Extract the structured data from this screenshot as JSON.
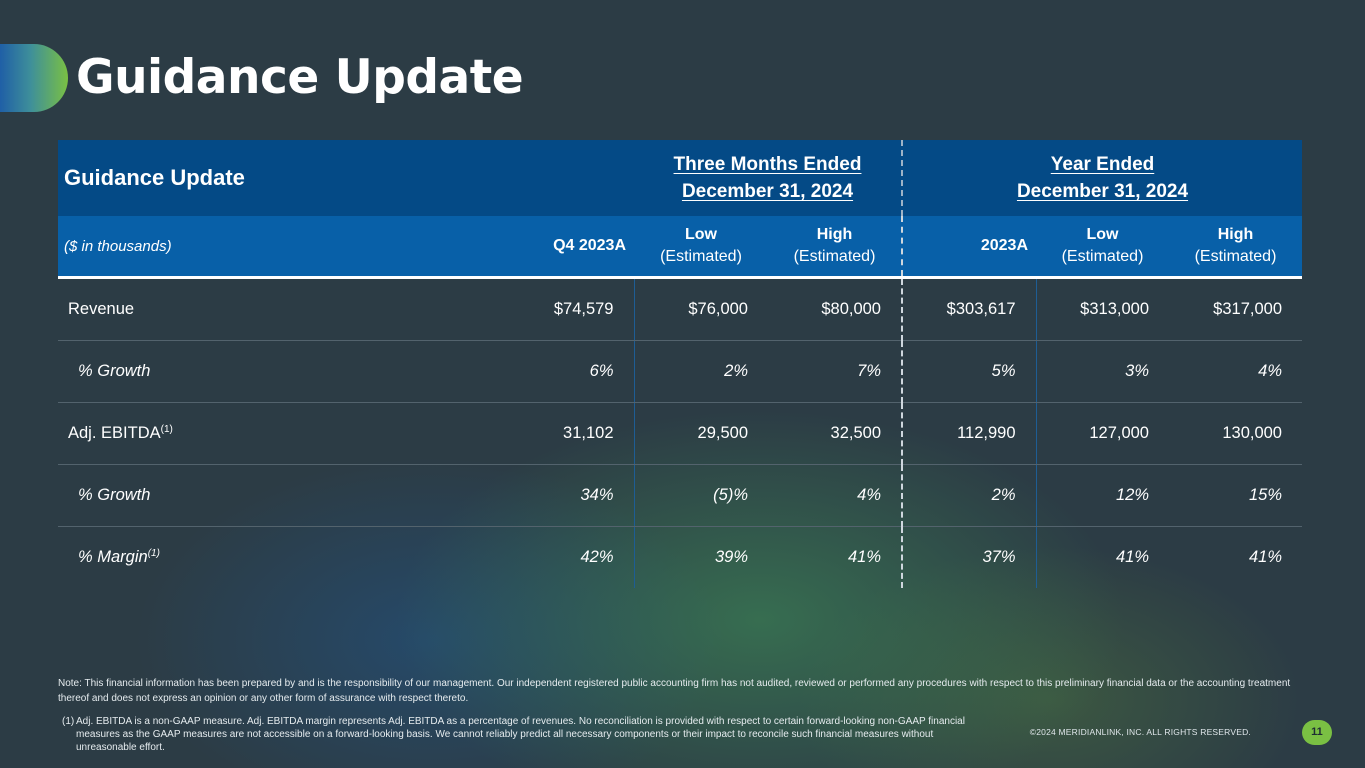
{
  "slide": {
    "title": "Guidance Update",
    "page_number": "11",
    "copyright": "©2024 MERIDIANLINK, INC. ALL RIGHTS RESERVED.",
    "accent_color": "#7ac043",
    "header_color": "#044a86",
    "subheader_color": "#0860a8"
  },
  "table": {
    "title": "Guidance Update",
    "units": "($ in thousands)",
    "groups": [
      {
        "line1": "Three Months Ended",
        "line2": "December 31, 2024"
      },
      {
        "line1": "Year Ended",
        "line2": "December 31, 2024"
      }
    ],
    "columns": [
      {
        "label": "Q4 2023A",
        "sub": ""
      },
      {
        "label": "Low",
        "sub": "(Estimated)"
      },
      {
        "label": "High",
        "sub": "(Estimated)"
      },
      {
        "label": "2023A",
        "sub": ""
      },
      {
        "label": "Low",
        "sub": "(Estimated)"
      },
      {
        "label": "High",
        "sub": "(Estimated)"
      }
    ],
    "rows": [
      {
        "label": "Revenue",
        "sup": "",
        "values": [
          "$74,579",
          "$76,000",
          "$80,000",
          "$303,617",
          "$313,000",
          "$317,000"
        ]
      },
      {
        "label": "% Growth",
        "sup": "",
        "values": [
          "6%",
          "2%",
          "7%",
          "5%",
          "3%",
          "4%"
        ]
      },
      {
        "label": "Adj. EBITDA",
        "sup": "(1)",
        "values": [
          "31,102",
          "29,500",
          "32,500",
          "112,990",
          "127,000",
          "130,000"
        ]
      },
      {
        "label": "% Growth",
        "sup": "",
        "values": [
          "34%",
          "(5)%",
          "4%",
          "2%",
          "12%",
          "15%"
        ]
      },
      {
        "label": "% Margin",
        "sup": "(1)",
        "values": [
          "42%",
          "39%",
          "41%",
          "37%",
          "41%",
          "41%"
        ]
      }
    ]
  },
  "notes": {
    "note": "Note: This financial information has been prepared by and is the responsibility of our management. Our independent registered public accounting firm has not audited, reviewed or performed any procedures with respect to this preliminary financial data or the accounting treatment thereof and does not express an opinion or any other form of assurance with respect thereto.",
    "footnote_marker": "(1)",
    "footnote": "Adj. EBITDA is a non-GAAP measure. Adj. EBITDA margin represents Adj. EBITDA as a percentage of revenues. No reconciliation is provided with respect to certain forward-looking non-GAAP financial measures as the GAAP measures are not accessible on a forward-looking basis. We cannot reliably predict all necessary components or their impact to reconcile such financial measures without unreasonable effort."
  }
}
